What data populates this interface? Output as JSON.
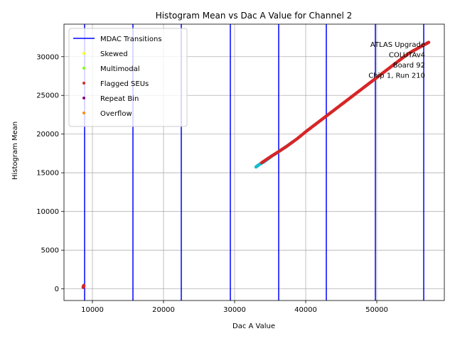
{
  "chart_data": {
    "type": "scatter",
    "title": "Histogram Mean vs Dac A Value for Channel 2",
    "xlabel": "Dac A Value",
    "ylabel": "Histogram Mean",
    "xlim": [
      6000,
      59500
    ],
    "ylim": [
      -1500,
      34200
    ],
    "xticks": [
      10000,
      20000,
      30000,
      40000,
      50000
    ],
    "yticks": [
      0,
      5000,
      10000,
      15000,
      20000,
      25000,
      30000
    ],
    "grid": true,
    "legend_position": "top-left",
    "mdac_transitions": [
      8900,
      15700,
      22500,
      29400,
      36200,
      42900,
      49800,
      56600
    ],
    "colors": {
      "mdac": "#0000ff",
      "skewed": "#ffff00",
      "multimodal": "#7fff00",
      "flagged": "#d62728",
      "repeat": "#800080",
      "overflow": "#ff8c00",
      "normal": "#17becf",
      "grid": "#b0b0b0"
    },
    "legend": [
      {
        "label": "MDAC Transitions",
        "kind": "line",
        "color_key": "mdac"
      },
      {
        "label": "Skewed",
        "kind": "dot",
        "color_key": "skewed"
      },
      {
        "label": "Multimodal",
        "kind": "dot",
        "color_key": "multimodal"
      },
      {
        "label": "Flagged SEUs",
        "kind": "dot",
        "color_key": "flagged"
      },
      {
        "label": "Repeat Bin",
        "kind": "dot",
        "color_key": "repeat"
      },
      {
        "label": "Overflow",
        "kind": "dot",
        "color_key": "overflow"
      }
    ],
    "series": [
      {
        "name": "Flagged SEUs",
        "color_key": "flagged",
        "x": [
          8700,
          8750,
          8800
        ],
        "y": [
          200,
          350,
          450
        ]
      },
      {
        "name": "",
        "color_key": "normal",
        "x": [
          33000,
          33300,
          33600,
          34100,
          34700,
          35300,
          36000,
          36800,
          37600,
          38200
        ],
        "y": [
          15750,
          15950,
          16150,
          16400,
          16800,
          17200,
          17600,
          18100,
          18600,
          19000
        ]
      },
      {
        "name": "Flagged SEUs",
        "color_key": "flagged",
        "x": [
          33800,
          35100,
          36300,
          37300,
          38800,
          40000,
          41000,
          42000,
          43000,
          44000,
          45000,
          46000,
          47000,
          48000,
          49000,
          50000,
          51000,
          52000,
          53000,
          54000,
          55000,
          56000,
          57000,
          57300
        ],
        "y": [
          16300,
          17100,
          17800,
          18400,
          19400,
          20300,
          21000,
          21700,
          22400,
          23100,
          23800,
          24500,
          25200,
          25900,
          26600,
          27300,
          28000,
          28700,
          29400,
          30100,
          30700,
          31200,
          31700,
          31850
        ]
      }
    ],
    "annotation": [
      "ATLAS Upgrade",
      "COLUTAv4",
      "Board 92",
      "Chip 1, Run 210"
    ]
  }
}
